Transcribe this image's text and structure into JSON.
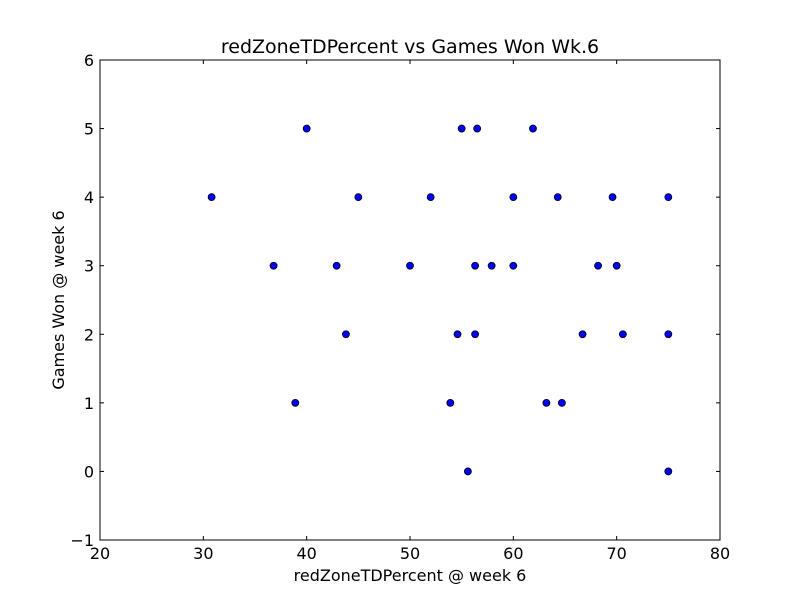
{
  "chart_data": {
    "type": "scatter",
    "title": "redZoneTDPercent vs Games Won Wk.6",
    "xlabel": "redZoneTDPercent @ week 6",
    "ylabel": "Games Won @ week 6",
    "xlim": [
      20,
      80
    ],
    "ylim": [
      -1,
      6
    ],
    "xticks": [
      20,
      30,
      40,
      50,
      60,
      70,
      80
    ],
    "yticks": [
      -1,
      0,
      1,
      2,
      3,
      4,
      5,
      6
    ],
    "xtick_labels": [
      "20",
      "30",
      "40",
      "50",
      "60",
      "70",
      "80"
    ],
    "ytick_labels": [
      "−1",
      "0",
      "1",
      "2",
      "3",
      "4",
      "5",
      "6"
    ],
    "grid": false,
    "marker_color": "#0000ff",
    "marker_edge_color": "#000000",
    "points": [
      {
        "x": 30.8,
        "y": 4
      },
      {
        "x": 36.8,
        "y": 3
      },
      {
        "x": 38.9,
        "y": 1
      },
      {
        "x": 40.0,
        "y": 5
      },
      {
        "x": 42.9,
        "y": 3
      },
      {
        "x": 43.8,
        "y": 2
      },
      {
        "x": 45.0,
        "y": 4
      },
      {
        "x": 50.0,
        "y": 3
      },
      {
        "x": 52.0,
        "y": 4
      },
      {
        "x": 53.9,
        "y": 1
      },
      {
        "x": 54.6,
        "y": 2
      },
      {
        "x": 55.0,
        "y": 5
      },
      {
        "x": 55.6,
        "y": 0
      },
      {
        "x": 56.3,
        "y": 3
      },
      {
        "x": 56.3,
        "y": 2
      },
      {
        "x": 56.5,
        "y": 5
      },
      {
        "x": 57.9,
        "y": 3
      },
      {
        "x": 60.0,
        "y": 4
      },
      {
        "x": 60.0,
        "y": 3
      },
      {
        "x": 61.9,
        "y": 5
      },
      {
        "x": 63.2,
        "y": 1
      },
      {
        "x": 64.3,
        "y": 4
      },
      {
        "x": 64.7,
        "y": 1
      },
      {
        "x": 66.7,
        "y": 2
      },
      {
        "x": 68.2,
        "y": 3
      },
      {
        "x": 69.6,
        "y": 4
      },
      {
        "x": 70.0,
        "y": 3
      },
      {
        "x": 70.6,
        "y": 2
      },
      {
        "x": 75.0,
        "y": 4
      },
      {
        "x": 75.0,
        "y": 2
      },
      {
        "x": 75.0,
        "y": 0
      }
    ]
  }
}
